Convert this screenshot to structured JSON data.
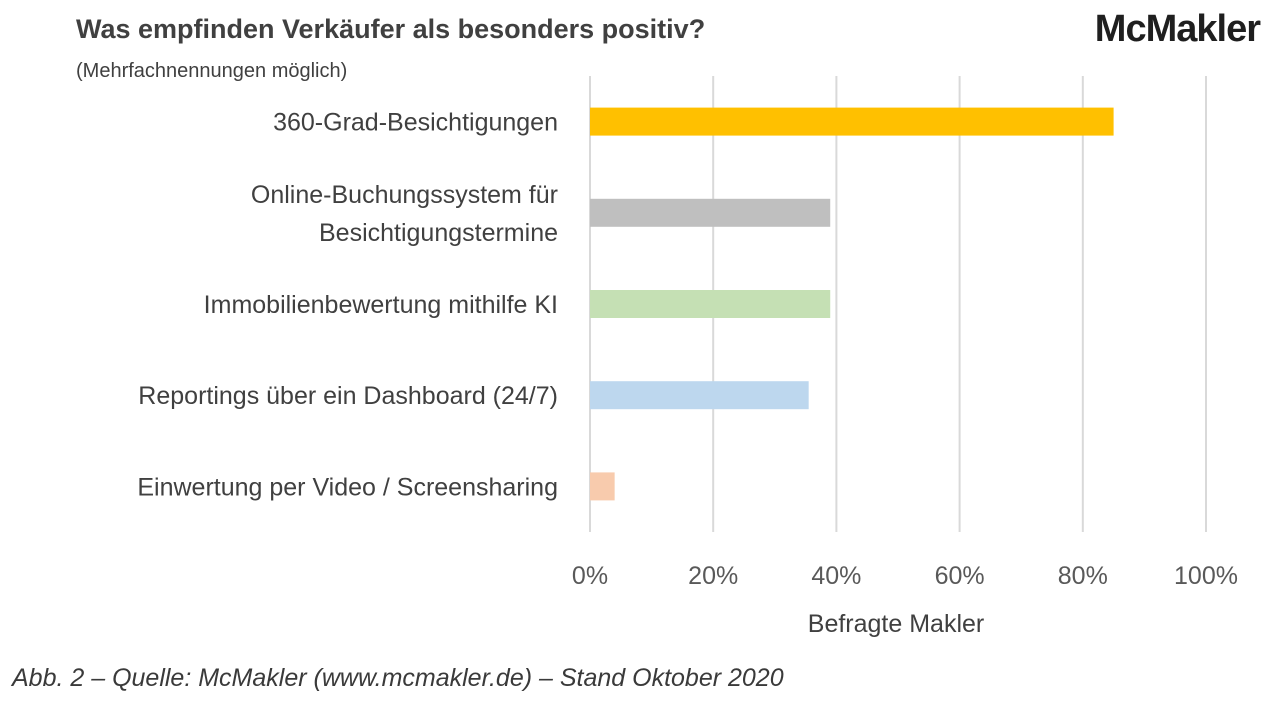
{
  "header": {
    "title": "Was empfinden Verkäufer als besonders positiv?",
    "subtitle": "(Mehrfachnennungen möglich)",
    "logo": "McMakler"
  },
  "footer": {
    "source": "Abb. 2 – Quelle: McMakler (www.mcmakler.de) – Stand Oktober 2020"
  },
  "chart_data": {
    "type": "bar",
    "orientation": "horizontal",
    "title": "Was empfinden Verkäufer als besonders positiv?",
    "subtitle": "(Mehrfachnennungen möglich)",
    "xlabel": "Befragte Makler",
    "ylabel": "",
    "xlim": [
      0,
      100
    ],
    "x_ticks": [
      "0%",
      "20%",
      "40%",
      "60%",
      "80%",
      "100%"
    ],
    "x_tick_values": [
      0,
      20,
      40,
      60,
      80,
      100
    ],
    "grid": "vertical",
    "legend": "none",
    "categories": [
      [
        "360-Grad-Besichtigungen"
      ],
      [
        "Online-Buchungssystem für",
        "Besichtigungstermine"
      ],
      [
        "Immobilienbewertung mithilfe KI"
      ],
      [
        "Reportings über ein Dashboard (24/7)"
      ],
      [
        "Einwertung per Video / Screensharing"
      ]
    ],
    "values": [
      85,
      39,
      39,
      35.5,
      4
    ],
    "colors": [
      "#ffc000",
      "#bfbfbf",
      "#c5e0b4",
      "#bdd7ee",
      "#f8cbad"
    ]
  }
}
